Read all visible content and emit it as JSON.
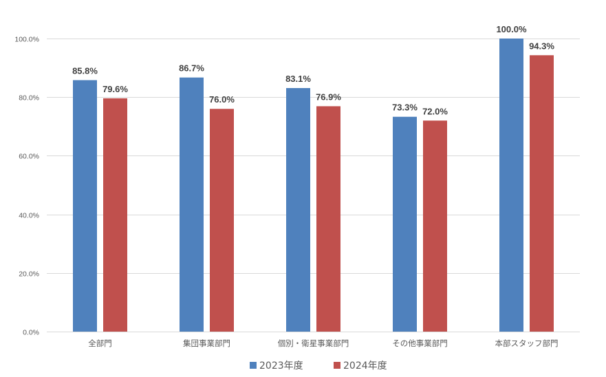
{
  "chart_data": {
    "type": "bar",
    "categories": [
      "全部門",
      "集団事業部門",
      "個別・衛星事業部門",
      "その他事業部門",
      "本部スタッフ部門"
    ],
    "series": [
      {
        "name": "2023年度",
        "color": "#4f81bd",
        "values": [
          85.8,
          86.7,
          83.1,
          73.3,
          100.0
        ],
        "labels": [
          "85.8%",
          "86.7%",
          "83.1%",
          "73.3%",
          "100.0%"
        ]
      },
      {
        "name": "2024年度",
        "color": "#c0504d",
        "values": [
          79.6,
          76.0,
          76.9,
          72.0,
          94.3
        ],
        "labels": [
          "79.6%",
          "76.0%",
          "76.9%",
          "72.0%",
          "94.3%"
        ]
      }
    ],
    "ylim": [
      0,
      100
    ],
    "yticks": [
      0,
      20,
      40,
      60,
      80,
      100
    ],
    "ytick_labels": [
      "0.0%",
      "20.0%",
      "40.0%",
      "60.0%",
      "80.0%",
      "100.0%"
    ],
    "grid": true,
    "legend_position": "bottom"
  }
}
